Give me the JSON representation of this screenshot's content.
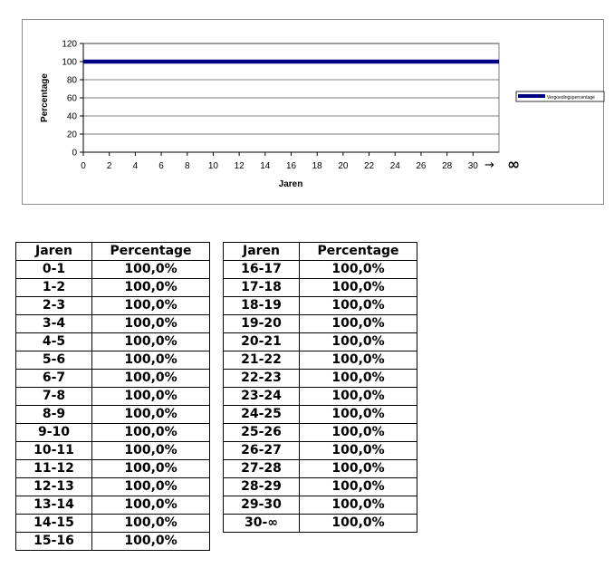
{
  "chart_data": {
    "type": "line",
    "xlabel": "Jaren",
    "ylabel": "Percentage",
    "xlim": [
      0,
      32
    ],
    "ylim": [
      0,
      120
    ],
    "x_ticks": [
      "0",
      "2",
      "4",
      "6",
      "8",
      "10",
      "12",
      "14",
      "16",
      "18",
      "20",
      "22",
      "24",
      "26",
      "28",
      "30"
    ],
    "y_ticks": [
      "0",
      "20",
      "40",
      "60",
      "80",
      "100",
      "120"
    ],
    "x_axis_end_arrow": "→",
    "x_axis_end_label": "∞",
    "series": [
      {
        "name": "Vergoedingspercentage",
        "x": [
          0,
          32
        ],
        "y": [
          100,
          100
        ],
        "color": "#000080"
      }
    ],
    "legend_position": "right",
    "grid": "horizontal"
  },
  "tables": {
    "left": {
      "headers": [
        "Jaren",
        "Percentage"
      ],
      "rows": [
        [
          "0-1",
          "100,0%"
        ],
        [
          "1-2",
          "100,0%"
        ],
        [
          "2-3",
          "100,0%"
        ],
        [
          "3-4",
          "100,0%"
        ],
        [
          "4-5",
          "100,0%"
        ],
        [
          "5-6",
          "100,0%"
        ],
        [
          "6-7",
          "100,0%"
        ],
        [
          "7-8",
          "100,0%"
        ],
        [
          "8-9",
          "100,0%"
        ],
        [
          "9-10",
          "100,0%"
        ],
        [
          "10-11",
          "100,0%"
        ],
        [
          "11-12",
          "100,0%"
        ],
        [
          "12-13",
          "100,0%"
        ],
        [
          "13-14",
          "100,0%"
        ],
        [
          "14-15",
          "100,0%"
        ],
        [
          "15-16",
          "100,0%"
        ]
      ]
    },
    "right": {
      "headers": [
        "Jaren",
        "Percentage"
      ],
      "rows": [
        [
          "16-17",
          "100,0%"
        ],
        [
          "17-18",
          "100,0%"
        ],
        [
          "18-19",
          "100,0%"
        ],
        [
          "19-20",
          "100,0%"
        ],
        [
          "20-21",
          "100,0%"
        ],
        [
          "21-22",
          "100,0%"
        ],
        [
          "22-23",
          "100,0%"
        ],
        [
          "23-24",
          "100,0%"
        ],
        [
          "24-25",
          "100,0%"
        ],
        [
          "25-26",
          "100,0%"
        ],
        [
          "26-27",
          "100,0%"
        ],
        [
          "27-28",
          "100,0%"
        ],
        [
          "28-29",
          "100,0%"
        ],
        [
          "29-30",
          "100,0%"
        ],
        [
          "30-∞",
          "100,0%"
        ]
      ]
    }
  }
}
